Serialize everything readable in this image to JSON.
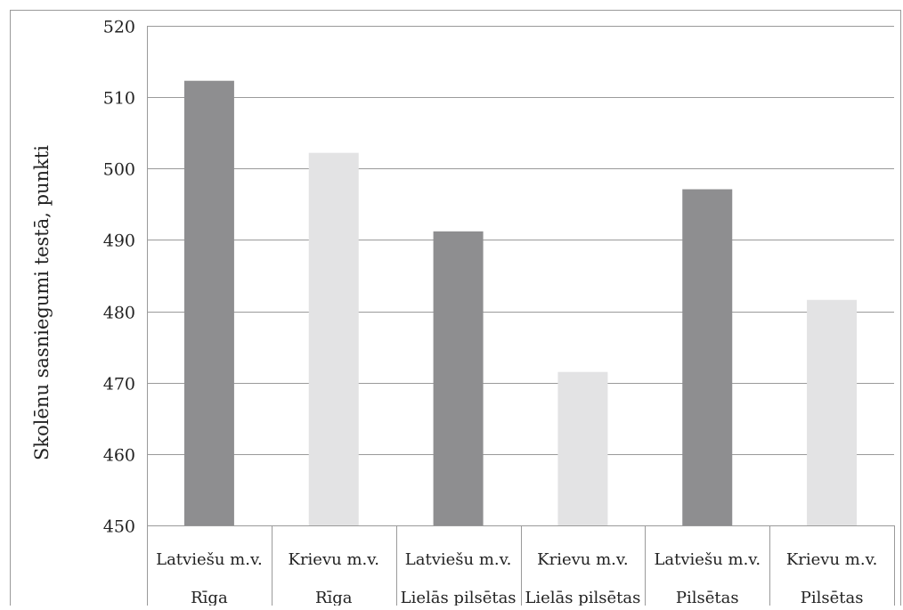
{
  "chart_data": {
    "type": "bar",
    "title": "",
    "xlabel": "",
    "ylabel": "Skolēnu sasniegumi testā, punkti",
    "ylim": [
      450,
      520
    ],
    "yticks": [
      450,
      460,
      470,
      480,
      490,
      500,
      510,
      520
    ],
    "grid": true,
    "legend": "none",
    "categories": [
      {
        "top": "Latviešu m.v.",
        "bottom": "Rīga"
      },
      {
        "top": "Krievu m.v.",
        "bottom": "Rīga"
      },
      {
        "top": "Latviešu m.v.",
        "bottom": "Lielās pilsētas"
      },
      {
        "top": "Krievu m.v.",
        "bottom": "Lielās pilsētas"
      },
      {
        "top": "Latviešu m.v.",
        "bottom": "Pilsētas"
      },
      {
        "top": "Krievu m.v.",
        "bottom": "Pilsētas"
      }
    ],
    "values": [
      512.3,
      502.2,
      491.2,
      471.5,
      497.1,
      481.6
    ],
    "bar_colors": [
      "#8e8e90",
      "#e3e3e4",
      "#8e8e90",
      "#e3e3e4",
      "#8e8e90",
      "#e3e3e4"
    ],
    "colors": {
      "grid": "#9a9a9a",
      "frame": "#9a9a9a",
      "text": "#222222"
    }
  }
}
